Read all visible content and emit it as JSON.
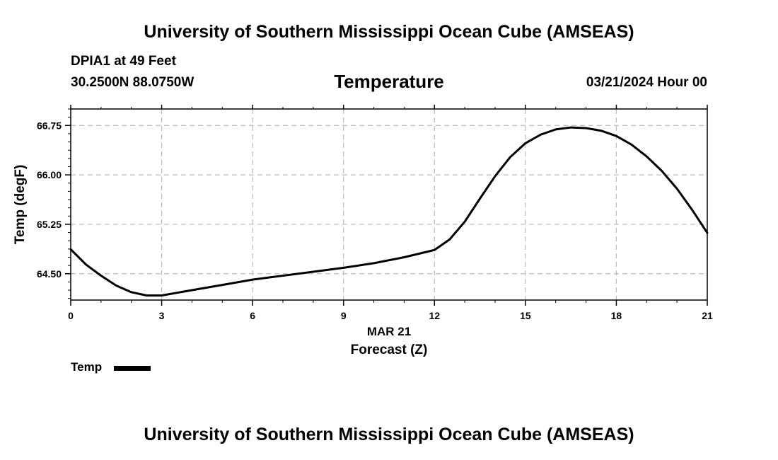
{
  "header": {
    "title": "University of Southern Mississippi Ocean Cube (AMSEAS)",
    "station": "DPIA1 at 49 Feet",
    "coords": "30.2500N  88.0750W",
    "chart_title": "Temperature",
    "datetime": "03/21/2024 Hour 00"
  },
  "footer": {
    "title": "University of Southern Mississippi Ocean Cube (AMSEAS)"
  },
  "legend": {
    "label": "Temp"
  },
  "colors": {
    "line": "#000000",
    "grid": "#bbbbbb",
    "background": "#ffffff"
  },
  "chart_data": {
    "type": "line",
    "title": "Temperature",
    "xlabel": "Forecast (Z)",
    "xlabel_date": "MAR 21",
    "ylabel": "Temp (degF)",
    "xlim": [
      0,
      21
    ],
    "ylim": [
      64.1,
      67.0
    ],
    "xticks": [
      0,
      3,
      6,
      9,
      12,
      15,
      18,
      21
    ],
    "xtick_labels": [
      "0",
      "3",
      "6",
      "9",
      "12",
      "15",
      "18",
      "21"
    ],
    "yticks": [
      64.5,
      65.25,
      66.0,
      66.75
    ],
    "ytick_labels": [
      "64.50",
      "65.25",
      "66.00",
      "66.75"
    ],
    "grid": true,
    "series": [
      {
        "name": "Temp",
        "x": [
          0,
          0.5,
          1,
          1.5,
          2,
          2.5,
          3,
          4,
          5,
          6,
          7,
          8,
          9,
          10,
          11,
          12,
          12.5,
          13,
          13.5,
          14,
          14.5,
          15,
          15.5,
          16,
          16.5,
          17,
          17.5,
          18,
          18.5,
          19,
          19.5,
          20,
          20.5,
          21
        ],
        "values": [
          64.87,
          64.64,
          64.47,
          64.32,
          64.22,
          64.17,
          64.17,
          64.25,
          64.33,
          64.41,
          64.47,
          64.53,
          64.59,
          64.66,
          64.75,
          64.86,
          65.02,
          65.29,
          65.64,
          65.98,
          66.27,
          66.48,
          66.61,
          66.69,
          66.72,
          66.71,
          66.67,
          66.59,
          66.46,
          66.28,
          66.06,
          65.79,
          65.47,
          65.12
        ]
      }
    ]
  }
}
